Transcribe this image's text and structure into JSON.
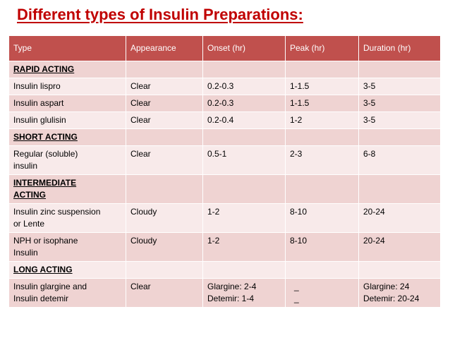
{
  "title": "Different types of Insulin Preparations:",
  "columns": [
    "Type",
    "Appearance",
    "Onset (hr)",
    "Peak (hr)",
    "Duration (hr)"
  ],
  "rows": [
    {
      "cells": [
        "RAPID ACTING",
        "",
        "",
        "",
        ""
      ],
      "category": true
    },
    {
      "cells": [
        "Insulin lispro",
        "Clear",
        "0.2-0.3",
        "1-1.5",
        "3-5"
      ]
    },
    {
      "cells": [
        "Insulin aspart",
        "Clear",
        "0.2-0.3",
        "1-1.5",
        "3-5"
      ]
    },
    {
      "cells": [
        "Insulin glulisin",
        "Clear",
        "0.2-0.4",
        "1-2",
        "3-5"
      ]
    },
    {
      "cells": [
        "SHORT ACTING",
        "",
        "",
        "",
        ""
      ],
      "category": true
    },
    {
      "cells": [
        "Regular (soluble)\ninsulin",
        "Clear",
        "0.5-1",
        "2-3",
        "6-8"
      ]
    },
    {
      "cells": [
        "INTERMEDIATE\nACTING",
        "",
        "",
        "",
        ""
      ],
      "category": true
    },
    {
      "cells": [
        "Insulin zinc suspension\nor Lente",
        "Cloudy",
        "1-2",
        "8-10",
        "20-24"
      ]
    },
    {
      "cells": [
        "NPH or isophane\nInsulin",
        "Cloudy",
        "1-2",
        "8-10",
        "20-24"
      ]
    },
    {
      "cells": [
        "LONG ACTING",
        "",
        "",
        "",
        ""
      ],
      "category": true
    },
    {
      "cells": [
        "Insulin glargine and\nInsulin detemir",
        "Clear",
        "Glargine: 2-4\nDetemir: 1-4",
        "_\n_",
        "Glargine: 24\nDetemir: 20-24"
      ]
    }
  ]
}
